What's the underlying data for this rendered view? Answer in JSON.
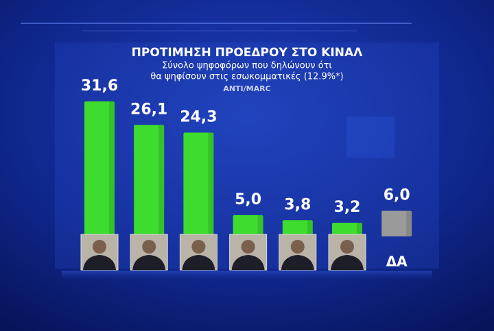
{
  "chart_data": {
    "type": "bar",
    "title": "ΠΡΟΤΙΜΗΣΗ ΠΡΟΕΔΡΟΥ ΣΤΟ ΚΙΝΑΛ",
    "subtitle": [
      "Σύνολο ψηφοφόρων που δηλώνουν ότι",
      "θα ψηφίσουν στις εσωκομματικές (12.9%*)"
    ],
    "source": "ANTI/MARC",
    "categories": [
      null,
      null,
      null,
      null,
      null,
      null,
      "ΔΑ"
    ],
    "values": [
      31.6,
      26.1,
      24.3,
      5.0,
      3.8,
      3.2,
      6.0
    ],
    "value_labels": [
      "31,6",
      "26,1",
      "24,3",
      "5,0",
      "3,8",
      "3,2",
      "6,0"
    ],
    "colors": [
      "#3ddc2e",
      "#3ddc2e",
      "#3ddc2e",
      "#3ddc2e",
      "#3ddc2e",
      "#3ddc2e",
      "#9a9a9a"
    ]
  }
}
